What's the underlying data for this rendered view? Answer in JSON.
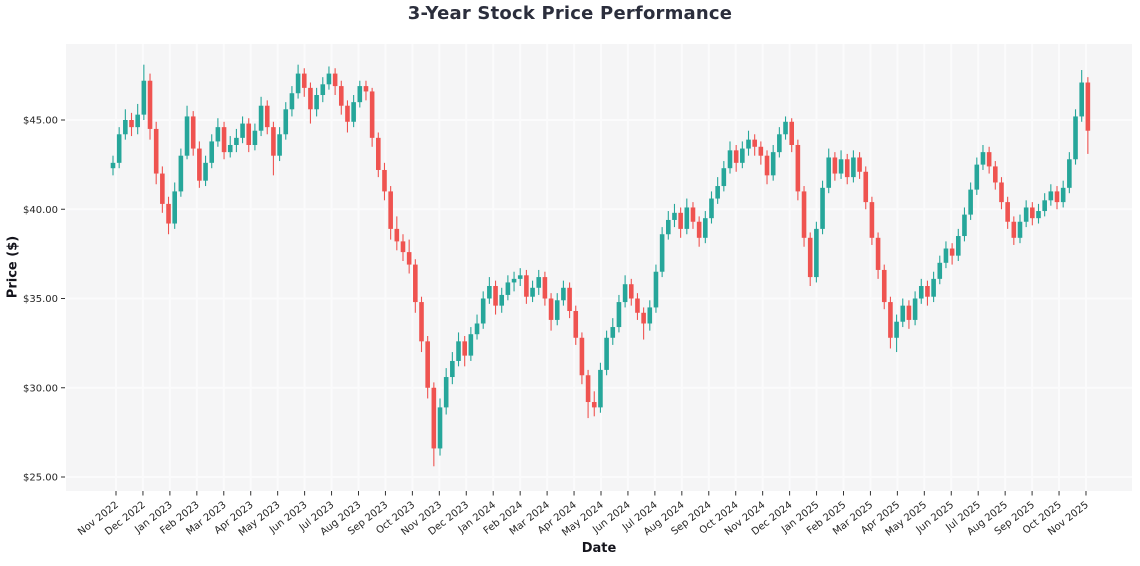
{
  "chart": {
    "colors": {
      "up": "#26a69a",
      "down": "#ef5350",
      "plot_bg": "#f5f5f6",
      "grid": "#fbfbfc",
      "tick_text": "#262626",
      "tick_mark": "#333333",
      "title_text": "#2b2e3c",
      "axis_label_text": "#14141c",
      "page_bg": "#ffffff"
    }
  },
  "chart_data": {
    "type": "candlestick",
    "title": "3-Year Stock Price Performance",
    "xlabel": "Date",
    "ylabel": "Price ($)",
    "legend": "none",
    "grid": "on",
    "y_tick_labels": [
      "$25.00",
      "$30.00",
      "$35.00",
      "$40.00",
      "$45.00"
    ],
    "y_tick_values": [
      25,
      30,
      35,
      40,
      45
    ],
    "ylim": [
      24.2,
      49.3
    ],
    "x_tick_labels": [
      "Nov 2022",
      "Dec 2022",
      "Jan 2023",
      "Feb 2023",
      "Mar 2023",
      "Apr 2023",
      "May 2023",
      "Jun 2023",
      "Jul 2023",
      "Aug 2023",
      "Sep 2023",
      "Oct 2023",
      "Nov 2023",
      "Dec 2023",
      "Jan 2024",
      "Feb 2024",
      "Mar 2024",
      "Apr 2024",
      "May 2024",
      "Jun 2024",
      "Jul 2024",
      "Aug 2024",
      "Sep 2024",
      "Oct 2024",
      "Nov 2024",
      "Dec 2024",
      "Jan 2025",
      "Feb 2025",
      "Mar 2025",
      "Apr 2025",
      "May 2025",
      "Jun 2025",
      "Jul 2025",
      "Aug 2025",
      "Sep 2025",
      "Oct 2025",
      "Nov 2025"
    ],
    "series_note": "OHLC values (open, high, low, close) sampled weekly from Nov 2022 through Nov 2025, read off the chart",
    "price_range_observed": {
      "low": 25.6,
      "high": 48.1,
      "start": 42.3,
      "end": 44.4
    },
    "candles": [
      [
        42.3,
        43.0,
        41.9,
        42.6
      ],
      [
        42.6,
        44.6,
        42.3,
        44.2
      ],
      [
        44.2,
        45.6,
        43.9,
        45.0
      ],
      [
        45.0,
        45.4,
        44.1,
        44.6
      ],
      [
        44.6,
        45.9,
        44.2,
        45.3
      ],
      [
        45.3,
        48.1,
        45.0,
        47.2
      ],
      [
        47.2,
        47.6,
        43.9,
        44.5
      ],
      [
        44.5,
        44.9,
        41.4,
        42.0
      ],
      [
        42.0,
        42.4,
        39.8,
        40.3
      ],
      [
        40.3,
        40.7,
        38.6,
        39.2
      ],
      [
        39.2,
        41.5,
        38.9,
        41.0
      ],
      [
        41.0,
        43.4,
        40.7,
        43.0
      ],
      [
        43.0,
        45.8,
        42.8,
        45.2
      ],
      [
        45.2,
        45.5,
        43.0,
        43.4
      ],
      [
        43.4,
        43.8,
        41.2,
        41.6
      ],
      [
        41.6,
        43.0,
        41.3,
        42.6
      ],
      [
        42.6,
        44.2,
        42.3,
        43.8
      ],
      [
        43.8,
        45.1,
        43.5,
        44.6
      ],
      [
        44.6,
        44.9,
        42.8,
        43.2
      ],
      [
        43.2,
        44.1,
        42.9,
        43.6
      ],
      [
        43.6,
        44.5,
        43.2,
        44.0
      ],
      [
        44.0,
        45.2,
        43.7,
        44.8
      ],
      [
        44.8,
        45.1,
        43.2,
        43.6
      ],
      [
        43.6,
        44.8,
        43.3,
        44.4
      ],
      [
        44.4,
        46.3,
        44.1,
        45.8
      ],
      [
        45.8,
        46.1,
        44.2,
        44.6
      ],
      [
        44.6,
        44.9,
        41.9,
        43.0
      ],
      [
        43.0,
        44.6,
        42.7,
        44.2
      ],
      [
        44.2,
        46.0,
        43.9,
        45.6
      ],
      [
        45.6,
        46.9,
        45.2,
        46.5
      ],
      [
        46.5,
        48.1,
        46.2,
        47.6
      ],
      [
        47.6,
        47.9,
        46.3,
        46.8
      ],
      [
        46.8,
        47.1,
        44.8,
        45.6
      ],
      [
        45.6,
        46.8,
        45.2,
        46.4
      ],
      [
        46.4,
        47.4,
        46.0,
        47.0
      ],
      [
        47.0,
        48.0,
        46.7,
        47.6
      ],
      [
        47.6,
        47.9,
        46.4,
        46.9
      ],
      [
        46.9,
        47.2,
        45.3,
        45.8
      ],
      [
        45.8,
        46.1,
        44.3,
        44.9
      ],
      [
        44.9,
        46.4,
        44.6,
        46.0
      ],
      [
        46.0,
        47.2,
        45.7,
        46.9
      ],
      [
        46.9,
        47.2,
        46.1,
        46.6
      ],
      [
        46.6,
        46.8,
        43.5,
        44.0
      ],
      [
        44.0,
        44.3,
        41.8,
        42.2
      ],
      [
        42.2,
        42.6,
        40.5,
        41.0
      ],
      [
        41.0,
        41.3,
        38.3,
        38.9
      ],
      [
        38.9,
        39.6,
        37.7,
        38.2
      ],
      [
        38.2,
        38.6,
        37.1,
        37.6
      ],
      [
        37.6,
        38.3,
        36.4,
        36.9
      ],
      [
        36.9,
        37.2,
        34.2,
        34.8
      ],
      [
        34.8,
        35.1,
        32.0,
        32.6
      ],
      [
        32.6,
        32.9,
        29.4,
        30.0
      ],
      [
        30.0,
        30.3,
        25.6,
        26.6
      ],
      [
        26.6,
        29.4,
        26.2,
        28.9
      ],
      [
        28.9,
        31.1,
        28.5,
        30.6
      ],
      [
        30.6,
        32.0,
        30.2,
        31.5
      ],
      [
        31.5,
        33.1,
        31.2,
        32.6
      ],
      [
        32.6,
        32.9,
        31.2,
        31.8
      ],
      [
        31.8,
        33.4,
        31.5,
        33.0
      ],
      [
        33.0,
        34.1,
        32.7,
        33.6
      ],
      [
        33.6,
        35.4,
        33.3,
        35.0
      ],
      [
        35.0,
        36.2,
        34.7,
        35.7
      ],
      [
        35.7,
        36.0,
        34.1,
        34.6
      ],
      [
        34.6,
        35.6,
        34.2,
        35.2
      ],
      [
        35.2,
        36.3,
        34.9,
        35.9
      ],
      [
        35.9,
        36.5,
        35.4,
        36.1
      ],
      [
        36.1,
        36.7,
        35.7,
        36.3
      ],
      [
        36.3,
        36.6,
        34.7,
        35.1
      ],
      [
        35.1,
        36.0,
        34.8,
        35.6
      ],
      [
        35.6,
        36.6,
        35.2,
        36.2
      ],
      [
        36.2,
        36.5,
        34.6,
        35.0
      ],
      [
        35.0,
        35.3,
        33.2,
        33.8
      ],
      [
        33.8,
        35.3,
        33.5,
        34.9
      ],
      [
        34.9,
        36.0,
        34.6,
        35.6
      ],
      [
        35.6,
        35.9,
        33.9,
        34.3
      ],
      [
        34.3,
        34.6,
        32.4,
        32.8
      ],
      [
        32.8,
        33.1,
        30.2,
        30.7
      ],
      [
        30.7,
        31.0,
        28.3,
        29.2
      ],
      [
        29.2,
        29.8,
        28.4,
        28.9
      ],
      [
        28.9,
        31.4,
        28.6,
        31.0
      ],
      [
        31.0,
        33.2,
        30.7,
        32.8
      ],
      [
        32.8,
        33.9,
        32.4,
        33.4
      ],
      [
        33.4,
        35.2,
        33.1,
        34.8
      ],
      [
        34.8,
        36.3,
        34.5,
        35.8
      ],
      [
        35.8,
        36.1,
        34.6,
        35.0
      ],
      [
        35.0,
        35.3,
        33.8,
        34.2
      ],
      [
        34.2,
        34.5,
        32.7,
        33.6
      ],
      [
        33.6,
        34.9,
        33.2,
        34.5
      ],
      [
        34.5,
        36.9,
        34.2,
        36.5
      ],
      [
        36.5,
        39.0,
        36.2,
        38.6
      ],
      [
        38.6,
        39.9,
        38.3,
        39.4
      ],
      [
        39.4,
        40.3,
        39.0,
        39.8
      ],
      [
        39.8,
        40.1,
        38.4,
        38.9
      ],
      [
        38.9,
        40.6,
        38.6,
        40.1
      ],
      [
        40.1,
        40.4,
        38.9,
        39.3
      ],
      [
        39.3,
        39.6,
        37.9,
        38.4
      ],
      [
        38.4,
        39.9,
        38.1,
        39.5
      ],
      [
        39.5,
        41.0,
        39.2,
        40.6
      ],
      [
        40.6,
        41.8,
        40.3,
        41.3
      ],
      [
        41.3,
        42.7,
        41.0,
        42.3
      ],
      [
        42.3,
        43.8,
        42.0,
        43.3
      ],
      [
        43.3,
        43.6,
        42.1,
        42.6
      ],
      [
        42.6,
        43.8,
        42.3,
        43.4
      ],
      [
        43.4,
        44.4,
        43.0,
        43.9
      ],
      [
        43.9,
        44.2,
        43.0,
        43.5
      ],
      [
        43.5,
        43.8,
        42.5,
        43.0
      ],
      [
        43.0,
        43.3,
        41.4,
        41.9
      ],
      [
        41.9,
        43.6,
        41.6,
        43.2
      ],
      [
        43.2,
        44.6,
        42.9,
        44.2
      ],
      [
        44.2,
        45.2,
        43.9,
        44.9
      ],
      [
        44.9,
        45.1,
        43.2,
        43.6
      ],
      [
        43.6,
        43.9,
        40.5,
        41.0
      ],
      [
        41.0,
        41.3,
        37.9,
        38.4
      ],
      [
        38.4,
        38.7,
        35.7,
        36.2
      ],
      [
        36.2,
        39.3,
        35.9,
        38.9
      ],
      [
        38.9,
        41.6,
        38.6,
        41.2
      ],
      [
        41.2,
        43.4,
        40.9,
        42.9
      ],
      [
        42.9,
        43.2,
        41.6,
        42.0
      ],
      [
        42.0,
        43.3,
        41.7,
        42.8
      ],
      [
        42.8,
        43.1,
        41.4,
        41.8
      ],
      [
        41.8,
        43.3,
        41.5,
        42.9
      ],
      [
        42.9,
        43.2,
        41.7,
        42.1
      ],
      [
        42.1,
        42.4,
        40.0,
        40.4
      ],
      [
        40.4,
        40.7,
        38.0,
        38.4
      ],
      [
        38.4,
        38.7,
        36.1,
        36.6
      ],
      [
        36.6,
        36.9,
        34.4,
        34.8
      ],
      [
        34.8,
        35.1,
        32.2,
        32.8
      ],
      [
        32.8,
        34.1,
        32.0,
        33.7
      ],
      [
        33.7,
        35.0,
        33.4,
        34.6
      ],
      [
        34.6,
        34.9,
        33.3,
        33.8
      ],
      [
        33.8,
        35.4,
        33.5,
        35.0
      ],
      [
        35.0,
        36.1,
        34.7,
        35.7
      ],
      [
        35.7,
        36.0,
        34.6,
        35.1
      ],
      [
        35.1,
        36.5,
        34.8,
        36.1
      ],
      [
        36.1,
        37.4,
        35.8,
        37.0
      ],
      [
        37.0,
        38.2,
        36.7,
        37.8
      ],
      [
        37.8,
        38.1,
        36.9,
        37.4
      ],
      [
        37.4,
        38.9,
        37.1,
        38.5
      ],
      [
        38.5,
        40.1,
        38.2,
        39.7
      ],
      [
        39.7,
        41.5,
        39.4,
        41.1
      ],
      [
        41.1,
        42.9,
        40.8,
        42.5
      ],
      [
        42.5,
        43.6,
        42.2,
        43.2
      ],
      [
        43.2,
        43.5,
        42.0,
        42.4
      ],
      [
        42.4,
        42.7,
        41.1,
        41.5
      ],
      [
        41.5,
        41.8,
        40.0,
        40.4
      ],
      [
        40.4,
        40.7,
        38.9,
        39.3
      ],
      [
        39.3,
        39.6,
        38.0,
        38.4
      ],
      [
        38.4,
        39.7,
        38.1,
        39.3
      ],
      [
        39.3,
        40.5,
        39.0,
        40.1
      ],
      [
        40.1,
        40.4,
        39.1,
        39.5
      ],
      [
        39.5,
        40.3,
        39.2,
        39.9
      ],
      [
        39.9,
        40.9,
        39.6,
        40.5
      ],
      [
        40.5,
        41.4,
        40.2,
        41.0
      ],
      [
        41.0,
        41.3,
        40.0,
        40.4
      ],
      [
        40.4,
        41.6,
        40.1,
        41.2
      ],
      [
        41.2,
        43.2,
        40.9,
        42.8
      ],
      [
        42.8,
        45.6,
        42.5,
        45.2
      ],
      [
        45.2,
        47.8,
        44.9,
        47.1
      ],
      [
        47.1,
        47.4,
        43.1,
        44.4
      ]
    ]
  }
}
